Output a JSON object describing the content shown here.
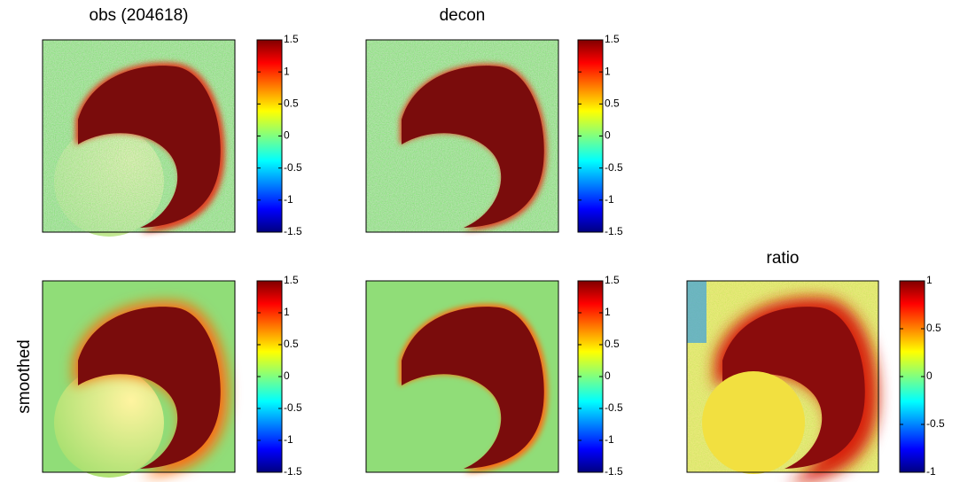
{
  "chart_data": [
    {
      "type": "heatmap",
      "title": "obs (204618)",
      "clim": [
        -1.5,
        1.5
      ],
      "cticks": [
        1.5,
        1,
        0.5,
        0,
        -0.5,
        -1,
        -1.5
      ]
    },
    {
      "type": "heatmap",
      "title": "decon",
      "clim": [
        -1.5,
        1.5
      ],
      "cticks": [
        1.5,
        1,
        0.5,
        0,
        -0.5,
        -1,
        -1.5
      ]
    },
    {
      "type": "heatmap",
      "ylabel": "smoothed",
      "clim": [
        -1.5,
        1.5
      ],
      "cticks": [
        1.5,
        1,
        0.5,
        0,
        -0.5,
        -1,
        -1.5
      ]
    },
    {
      "type": "heatmap",
      "clim": [
        -1.5,
        1.5
      ],
      "cticks": [
        1.5,
        1,
        0.5,
        0,
        -0.5,
        -1,
        -1.5
      ]
    },
    {
      "type": "heatmap",
      "title": "ratio",
      "clim": [
        -1,
        1
      ],
      "cticks": [
        1,
        0.5,
        0,
        -0.5,
        -1
      ]
    }
  ]
}
